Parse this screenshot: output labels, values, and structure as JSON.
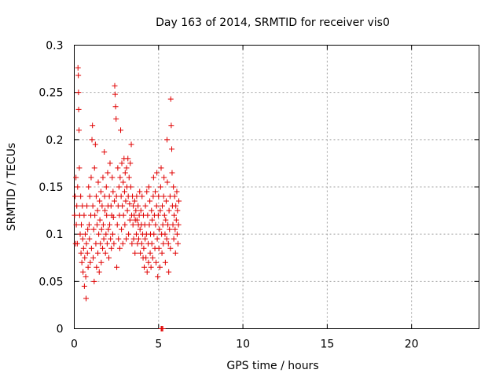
{
  "chart_data": {
    "type": "scatter",
    "title": "Day 163 of 2014, SRMTID for receiver vis0",
    "xlabel": "GPS time / hours",
    "ylabel": "SRMTID / TECUs",
    "xlim": [
      0,
      24
    ],
    "ylim": [
      0,
      0.3
    ],
    "x_ticks": [
      0,
      5,
      10,
      15,
      20
    ],
    "x_tick_labels": [
      "0",
      "5",
      "10",
      "15",
      "20"
    ],
    "y_ticks": [
      0,
      0.05,
      0.1,
      0.15,
      0.2,
      0.25,
      0.3
    ],
    "y_tick_labels": [
      "0",
      "0.05",
      "0.1",
      "0.15",
      "0.2",
      "0.25",
      "0.3"
    ],
    "grid": true,
    "marker": "plus",
    "color": "#e00000",
    "series": [
      {
        "values": [
          [
            0.02,
            0.12
          ],
          [
            0.05,
            0.14
          ],
          [
            0.08,
            0.09
          ],
          [
            0.1,
            0.16
          ],
          [
            0.12,
            0.11
          ],
          [
            0.15,
            0.13
          ],
          [
            0.18,
            0.09
          ],
          [
            0.2,
            0.15
          ],
          [
            0.22,
            0.276
          ],
          [
            0.24,
            0.268
          ],
          [
            0.25,
            0.25
          ],
          [
            0.26,
            0.232
          ],
          [
            0.28,
            0.21
          ],
          [
            0.3,
            0.17
          ],
          [
            0.32,
            0.12
          ],
          [
            0.35,
            0.1
          ],
          [
            0.38,
            0.14
          ],
          [
            0.4,
            0.08
          ],
          [
            0.42,
            0.11
          ],
          [
            0.45,
            0.07
          ],
          [
            0.48,
            0.13
          ],
          [
            0.5,
            0.095
          ],
          [
            0.52,
            0.06
          ],
          [
            0.55,
            0.085
          ],
          [
            0.58,
            0.12
          ],
          [
            0.6,
            0.045
          ],
          [
            0.62,
            0.075
          ],
          [
            0.65,
            0.1
          ],
          [
            0.68,
            0.055
          ],
          [
            0.7,
            0.032
          ],
          [
            0.72,
            0.09
          ],
          [
            0.75,
            0.13
          ],
          [
            0.78,
            0.08
          ],
          [
            0.8,
            0.105
          ],
          [
            0.82,
            0.065
          ],
          [
            0.85,
            0.15
          ],
          [
            0.88,
            0.11
          ],
          [
            0.9,
            0.095
          ],
          [
            0.92,
            0.14
          ],
          [
            0.95,
            0.07
          ],
          [
            0.98,
            0.12
          ],
          [
            1.0,
            0.16
          ],
          [
            1.02,
            0.085
          ],
          [
            1.05,
            0.2
          ],
          [
            1.08,
            0.215
          ],
          [
            1.1,
            0.13
          ],
          [
            1.12,
            0.075
          ],
          [
            1.15,
            0.105
          ],
          [
            1.18,
            0.05
          ],
          [
            1.2,
            0.17
          ],
          [
            1.22,
            0.12
          ],
          [
            1.25,
            0.195
          ],
          [
            1.28,
            0.09
          ],
          [
            1.3,
            0.14
          ],
          [
            1.32,
            0.065
          ],
          [
            1.35,
            0.11
          ],
          [
            1.38,
            0.125
          ],
          [
            1.4,
            0.08
          ],
          [
            1.42,
            0.155
          ],
          [
            1.45,
            0.1
          ],
          [
            1.48,
            0.06
          ],
          [
            1.5,
            0.135
          ],
          [
            1.52,
            0.115
          ],
          [
            1.55,
            0.09
          ],
          [
            1.58,
            0.145
          ],
          [
            1.6,
            0.07
          ],
          [
            1.62,
            0.105
          ],
          [
            1.65,
            0.13
          ],
          [
            1.68,
            0.085
          ],
          [
            1.7,
            0.16
          ],
          [
            1.72,
            0.11
          ],
          [
            1.75,
            0.095
          ],
          [
            1.78,
            0.187
          ],
          [
            1.8,
            0.14
          ],
          [
            1.82,
            0.125
          ],
          [
            1.85,
            0.08
          ],
          [
            1.88,
            0.1
          ],
          [
            1.9,
            0.15
          ],
          [
            1.92,
            0.12
          ],
          [
            1.95,
            0.09
          ],
          [
            1.98,
            0.165
          ],
          [
            2.0,
            0.13
          ],
          [
            2.02,
            0.105
          ],
          [
            2.05,
            0.075
          ],
          [
            2.08,
            0.14
          ],
          [
            2.1,
            0.11
          ],
          [
            2.12,
            0.175
          ],
          [
            2.15,
            0.095
          ],
          [
            2.18,
            0.13
          ],
          [
            2.2,
            0.085
          ],
          [
            2.22,
            0.12
          ],
          [
            2.25,
            0.16
          ],
          [
            2.28,
            0.1
          ],
          [
            2.3,
            0.145
          ],
          [
            2.32,
            0.118
          ],
          [
            2.35,
            0.09
          ],
          [
            2.38,
            0.135
          ],
          [
            2.4,
            0.257
          ],
          [
            2.42,
            0.248
          ],
          [
            2.45,
            0.235
          ],
          [
            2.48,
            0.222
          ],
          [
            2.5,
            0.14
          ],
          [
            2.52,
            0.065
          ],
          [
            2.55,
            0.11
          ],
          [
            2.58,
            0.17
          ],
          [
            2.6,
            0.13
          ],
          [
            2.62,
            0.095
          ],
          [
            2.65,
            0.15
          ],
          [
            2.68,
            0.12
          ],
          [
            2.7,
            0.085
          ],
          [
            2.72,
            0.16
          ],
          [
            2.75,
            0.21
          ],
          [
            2.78,
            0.14
          ],
          [
            2.8,
            0.105
          ],
          [
            2.82,
            0.175
          ],
          [
            2.85,
            0.13
          ],
          [
            2.88,
            0.09
          ],
          [
            2.9,
            0.155
          ],
          [
            2.92,
            0.12
          ],
          [
            2.95,
            0.18
          ],
          [
            2.98,
            0.145
          ],
          [
            3.0,
            0.11
          ],
          [
            3.02,
            0.165
          ],
          [
            3.05,
            0.135
          ],
          [
            3.08,
            0.095
          ],
          [
            3.1,
            0.17
          ],
          [
            3.12,
            0.15
          ],
          [
            3.15,
            0.125
          ],
          [
            3.18,
            0.18
          ],
          [
            3.2,
            0.14
          ],
          [
            3.22,
            0.1
          ],
          [
            3.25,
            0.16
          ],
          [
            3.28,
            0.132
          ],
          [
            3.3,
            0.115
          ],
          [
            3.32,
            0.175
          ],
          [
            3.35,
            0.15
          ],
          [
            3.38,
            0.195
          ],
          [
            3.4,
            0.12
          ],
          [
            3.42,
            0.09
          ],
          [
            3.45,
            0.14
          ],
          [
            3.48,
            0.11
          ],
          [
            3.5,
            0.13
          ],
          [
            3.52,
            0.095
          ],
          [
            3.55,
            0.12
          ],
          [
            3.58,
            0.135
          ],
          [
            3.6,
            0.08
          ],
          [
            3.62,
            0.115
          ],
          [
            3.65,
            0.125
          ],
          [
            3.68,
            0.1
          ],
          [
            3.7,
            0.14
          ],
          [
            3.72,
            0.115
          ],
          [
            3.75,
            0.09
          ],
          [
            3.78,
            0.13
          ],
          [
            3.8,
            0.11
          ],
          [
            3.82,
            0.095
          ],
          [
            3.85,
            0.12
          ],
          [
            3.88,
            0.145
          ],
          [
            3.9,
            0.105
          ],
          [
            3.92,
            0.08
          ],
          [
            3.95,
            0.125
          ],
          [
            3.98,
            0.11
          ],
          [
            4.0,
            0.09
          ],
          [
            4.02,
            0.14
          ],
          [
            4.05,
            0.1
          ],
          [
            4.08,
            0.075
          ],
          [
            4.1,
            0.12
          ],
          [
            4.12,
            0.085
          ],
          [
            4.15,
            0.065
          ],
          [
            4.18,
            0.11
          ],
          [
            4.2,
            0.095
          ],
          [
            4.22,
            0.13
          ],
          [
            4.25,
            0.075
          ],
          [
            4.28,
            0.1
          ],
          [
            4.3,
            0.145
          ],
          [
            4.32,
            0.06
          ],
          [
            4.35,
            0.12
          ],
          [
            4.38,
            0.09
          ],
          [
            4.4,
            0.07
          ],
          [
            4.42,
            0.15
          ],
          [
            4.45,
            0.11
          ],
          [
            4.48,
            0.135
          ],
          [
            4.5,
            0.08
          ],
          [
            4.52,
            0.1
          ],
          [
            4.55,
            0.065
          ],
          [
            4.58,
            0.125
          ],
          [
            4.6,
            0.09
          ],
          [
            4.62,
            0.115
          ],
          [
            4.65,
            0.075
          ],
          [
            4.68,
            0.14
          ],
          [
            4.7,
            0.16
          ],
          [
            4.72,
            0.1
          ],
          [
            4.75,
            0.12
          ],
          [
            4.78,
            0.085
          ],
          [
            4.8,
            0.145
          ],
          [
            4.82,
            0.11
          ],
          [
            4.85,
            0.07
          ],
          [
            4.88,
            0.13
          ],
          [
            4.9,
            0.165
          ],
          [
            4.92,
            0.095
          ],
          [
            4.95,
            0.055
          ],
          [
            4.98,
            0.12
          ],
          [
            5.0,
            0.14
          ],
          [
            5.02,
            0.085
          ],
          [
            5.05,
            0.105
          ],
          [
            5.08,
            0.065
          ],
          [
            5.1,
            0.125
          ],
          [
            5.12,
            0.15
          ],
          [
            5.15,
            0.17
          ],
          [
            5.18,
            0.1
          ],
          [
            5.2,
            0.08
          ],
          [
            5.22,
            0.13
          ],
          [
            5.25,
            0.11
          ],
          [
            5.28,
            0.09
          ],
          [
            5.3,
            0.14
          ],
          [
            5.32,
            0.16
          ],
          [
            5.35,
            0.12
          ],
          [
            5.38,
            0.1
          ],
          [
            5.4,
            0.07
          ],
          [
            5.42,
            0.115
          ],
          [
            5.45,
            0.135
          ],
          [
            5.48,
            0.095
          ],
          [
            5.5,
            0.2
          ],
          [
            5.52,
            0.155
          ],
          [
            5.55,
            0.11
          ],
          [
            5.58,
            0.09
          ],
          [
            5.6,
            0.06
          ],
          [
            5.62,
            0.125
          ],
          [
            5.65,
            0.105
          ],
          [
            5.68,
            0.14
          ],
          [
            5.7,
            0.085
          ],
          [
            5.72,
            0.243
          ],
          [
            5.75,
            0.215
          ],
          [
            5.78,
            0.19
          ],
          [
            5.8,
            0.165
          ],
          [
            5.82,
            0.13
          ],
          [
            5.85,
            0.11
          ],
          [
            5.88,
            0.15
          ],
          [
            5.9,
            0.095
          ],
          [
            5.92,
            0.12
          ],
          [
            5.95,
            0.14
          ],
          [
            5.98,
            0.105
          ],
          [
            6.0,
            0.08
          ],
          [
            6.02,
            0.13
          ],
          [
            6.05,
            0.115
          ],
          [
            6.08,
            0.145
          ],
          [
            6.1,
            0.1
          ],
          [
            6.12,
            0.125
          ],
          [
            6.15,
            0.09
          ],
          [
            6.18,
            0.11
          ],
          [
            6.2,
            0.135
          ]
        ]
      }
    ],
    "near_zero_marks_x": [
      5.15,
      5.2,
      5.25
    ]
  }
}
